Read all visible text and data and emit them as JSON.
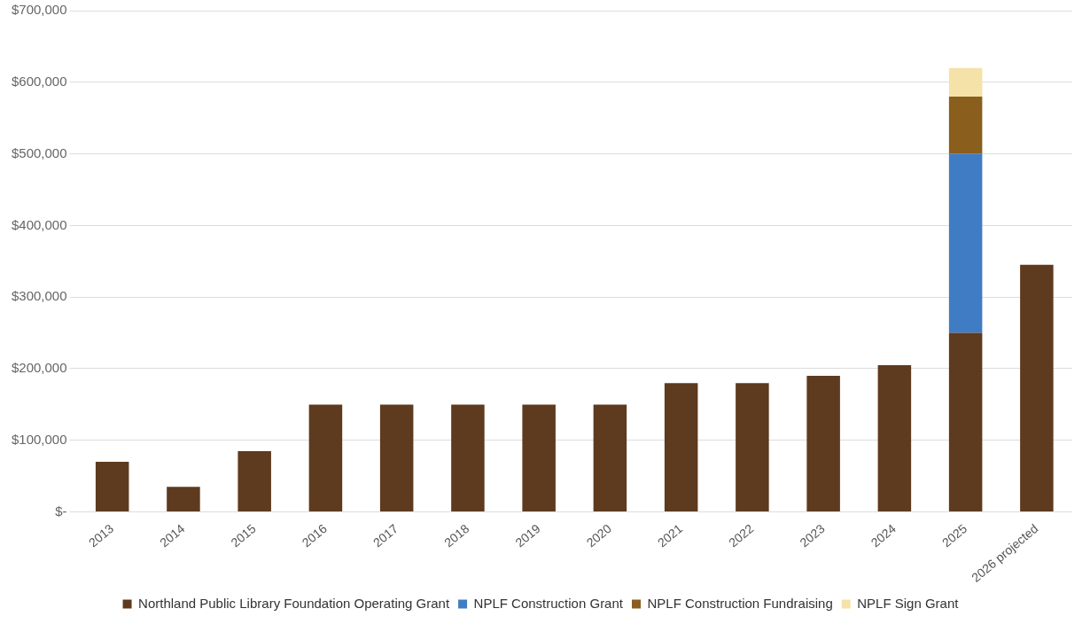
{
  "chart_data": {
    "type": "bar",
    "stacked": true,
    "categories": [
      "2013",
      "2014",
      "2015",
      "2016",
      "2017",
      "2018",
      "2019",
      "2020",
      "2021",
      "2022",
      "2023",
      "2024",
      "2025",
      "2026 projected"
    ],
    "series": [
      {
        "name": "Northland Public Library Foundation Operating Grant",
        "color": "#5e3a1e",
        "values": [
          70000,
          35000,
          85000,
          150000,
          150000,
          150000,
          150000,
          150000,
          180000,
          180000,
          190000,
          205000,
          250000,
          345000
        ]
      },
      {
        "name": "NPLF Construction Grant",
        "color": "#3f7cc4",
        "values": [
          null,
          null,
          null,
          null,
          null,
          null,
          null,
          null,
          null,
          null,
          null,
          null,
          250000,
          null
        ]
      },
      {
        "name": "NPLF Construction Fundraising",
        "color": "#8a5e1c",
        "values": [
          null,
          null,
          null,
          null,
          null,
          null,
          null,
          null,
          null,
          null,
          null,
          null,
          80000,
          null
        ]
      },
      {
        "name": "NPLF Sign Grant",
        "color": "#f5e2a8",
        "values": [
          null,
          null,
          null,
          null,
          null,
          null,
          null,
          null,
          null,
          null,
          null,
          null,
          40000,
          null
        ]
      }
    ],
    "ylim": [
      0,
      700000
    ],
    "yticks": [
      {
        "value": 0,
        "label": "$-"
      },
      {
        "value": 100000,
        "label": "$100,000"
      },
      {
        "value": 200000,
        "label": "$200,000"
      },
      {
        "value": 300000,
        "label": "$300,000"
      },
      {
        "value": 400000,
        "label": "$400,000"
      },
      {
        "value": 500000,
        "label": "$500,000"
      },
      {
        "value": 600000,
        "label": "$600,000"
      },
      {
        "value": 700000,
        "label": "$700,000"
      }
    ],
    "grid": "y",
    "legend": "bottom"
  }
}
